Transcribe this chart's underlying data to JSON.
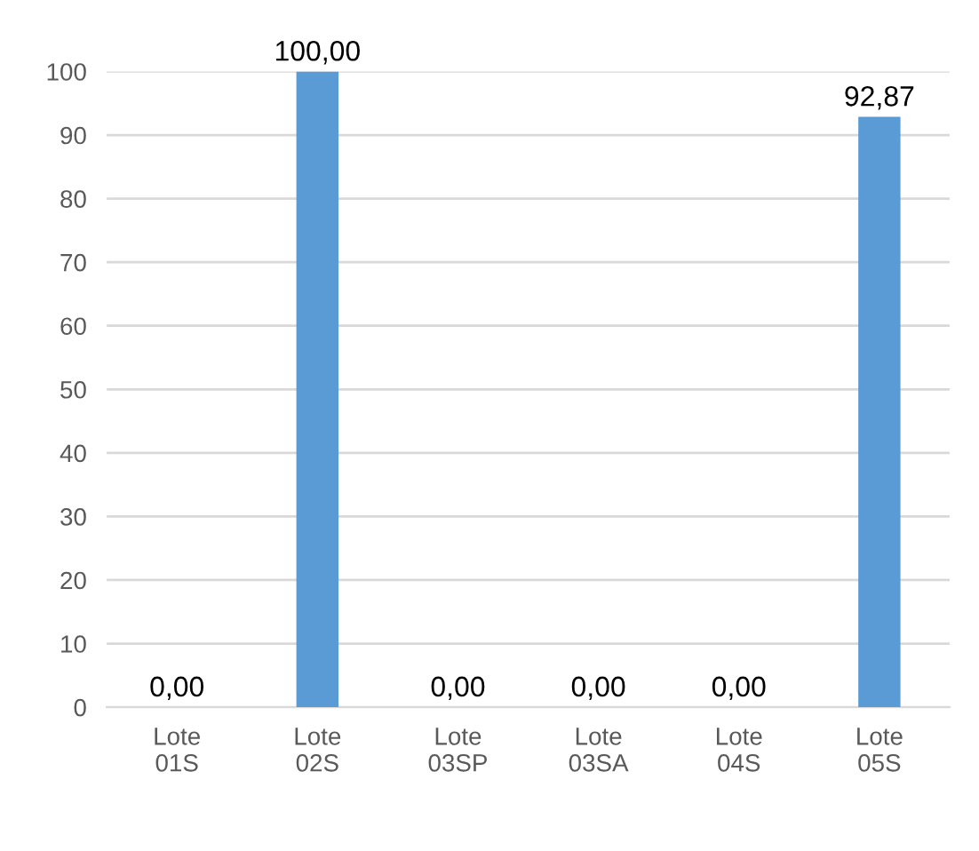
{
  "chart_data": {
    "type": "bar",
    "categories": [
      "Lote\n01S",
      "Lote\n02S",
      "Lote\n03SP",
      "Lote\n03SA",
      "Lote\n04S",
      "Lote\n05S"
    ],
    "values": [
      0,
      100,
      0,
      0,
      0,
      92.87
    ],
    "value_labels": [
      "0,00",
      "100,00",
      "0,00",
      "0,00",
      "0,00",
      "92,87"
    ],
    "color": "#5b9bd5",
    "ylim": [
      0,
      100
    ],
    "yticks": [
      0,
      10,
      20,
      30,
      40,
      50,
      60,
      70,
      80,
      90,
      100
    ],
    "grid": "y",
    "legend": false
  }
}
